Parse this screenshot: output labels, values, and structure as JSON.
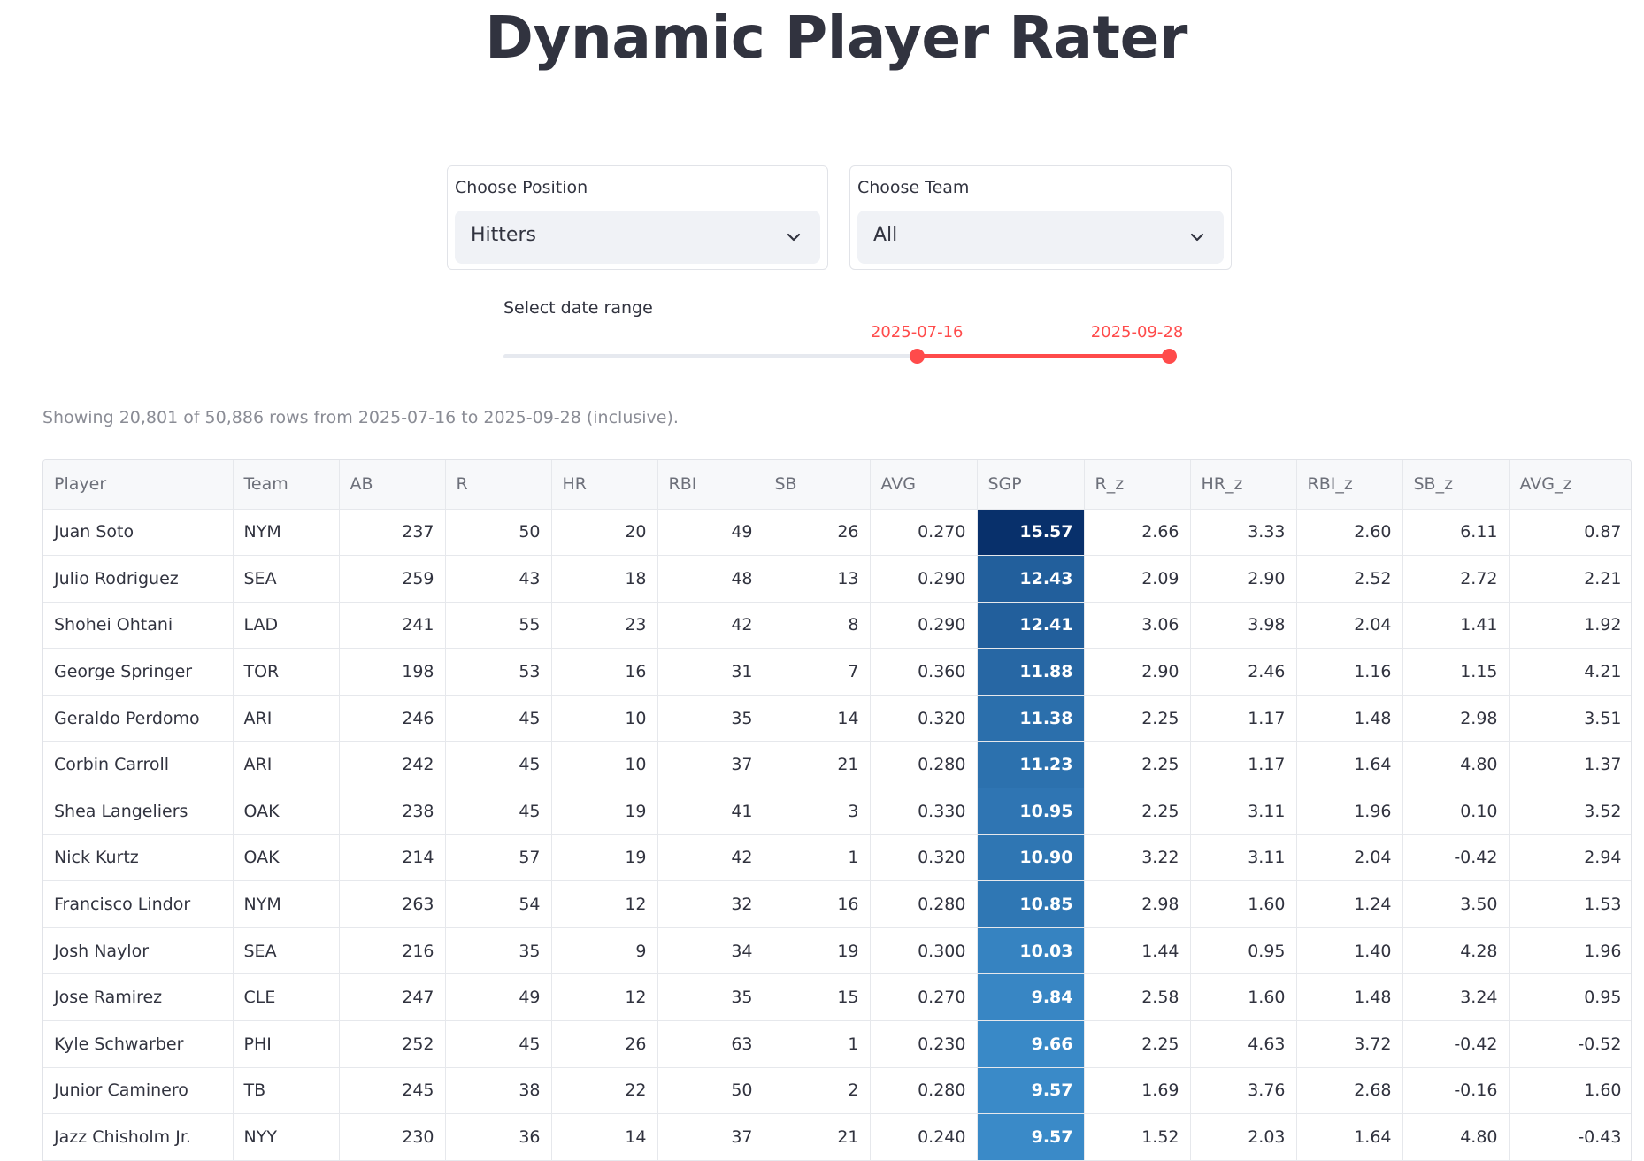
{
  "page": {
    "title": "Dynamic Player Rater"
  },
  "filters": {
    "position": {
      "label": "Choose Position",
      "value": "Hitters"
    },
    "team": {
      "label": "Choose Team",
      "value": "All"
    }
  },
  "date_range": {
    "label": "Select date range",
    "start": "2025-07-16",
    "end": "2025-09-28",
    "start_fraction": 0.618,
    "end_fraction": 1.0,
    "accent_color": "#ff4b4b"
  },
  "caption": "Showing 20,801 of 50,886 rows from 2025-07-16 to 2025-09-28 (inclusive).",
  "table": {
    "columns": [
      "Player",
      "Team",
      "AB",
      "R",
      "HR",
      "RBI",
      "SB",
      "AVG",
      "SGP",
      "R_z",
      "HR_z",
      "RBI_z",
      "SB_z",
      "AVG_z"
    ],
    "sgp_color_scale": {
      "low": "#3a8ac8",
      "high": "#08306b"
    },
    "rows": [
      [
        "Juan Soto",
        "NYM",
        "237",
        "50",
        "20",
        "49",
        "26",
        "0.270",
        "15.57",
        "2.66",
        "3.33",
        "2.60",
        "6.11",
        "0.87"
      ],
      [
        "Julio Rodriguez",
        "SEA",
        "259",
        "43",
        "18",
        "48",
        "13",
        "0.290",
        "12.43",
        "2.09",
        "2.90",
        "2.52",
        "2.72",
        "2.21"
      ],
      [
        "Shohei Ohtani",
        "LAD",
        "241",
        "55",
        "23",
        "42",
        "8",
        "0.290",
        "12.41",
        "3.06",
        "3.98",
        "2.04",
        "1.41",
        "1.92"
      ],
      [
        "George Springer",
        "TOR",
        "198",
        "53",
        "16",
        "31",
        "7",
        "0.360",
        "11.88",
        "2.90",
        "2.46",
        "1.16",
        "1.15",
        "4.21"
      ],
      [
        "Geraldo Perdomo",
        "ARI",
        "246",
        "45",
        "10",
        "35",
        "14",
        "0.320",
        "11.38",
        "2.25",
        "1.17",
        "1.48",
        "2.98",
        "3.51"
      ],
      [
        "Corbin Carroll",
        "ARI",
        "242",
        "45",
        "10",
        "37",
        "21",
        "0.280",
        "11.23",
        "2.25",
        "1.17",
        "1.64",
        "4.80",
        "1.37"
      ],
      [
        "Shea Langeliers",
        "OAK",
        "238",
        "45",
        "19",
        "41",
        "3",
        "0.330",
        "10.95",
        "2.25",
        "3.11",
        "1.96",
        "0.10",
        "3.52"
      ],
      [
        "Nick Kurtz",
        "OAK",
        "214",
        "57",
        "19",
        "42",
        "1",
        "0.320",
        "10.90",
        "3.22",
        "3.11",
        "2.04",
        "-0.42",
        "2.94"
      ],
      [
        "Francisco Lindor",
        "NYM",
        "263",
        "54",
        "12",
        "32",
        "16",
        "0.280",
        "10.85",
        "2.98",
        "1.60",
        "1.24",
        "3.50",
        "1.53"
      ],
      [
        "Josh Naylor",
        "SEA",
        "216",
        "35",
        "9",
        "34",
        "19",
        "0.300",
        "10.03",
        "1.44",
        "0.95",
        "1.40",
        "4.28",
        "1.96"
      ],
      [
        "Jose Ramirez",
        "CLE",
        "247",
        "49",
        "12",
        "35",
        "15",
        "0.270",
        "9.84",
        "2.58",
        "1.60",
        "1.48",
        "3.24",
        "0.95"
      ],
      [
        "Kyle Schwarber",
        "PHI",
        "252",
        "45",
        "26",
        "63",
        "1",
        "0.230",
        "9.66",
        "2.25",
        "4.63",
        "3.72",
        "-0.42",
        "-0.52"
      ],
      [
        "Junior Caminero",
        "TB",
        "245",
        "38",
        "22",
        "50",
        "2",
        "0.280",
        "9.57",
        "1.69",
        "3.76",
        "2.68",
        "-0.16",
        "1.60"
      ],
      [
        "Jazz Chisholm Jr.",
        "NYY",
        "230",
        "36",
        "14",
        "37",
        "21",
        "0.240",
        "9.57",
        "1.52",
        "2.03",
        "1.64",
        "4.80",
        "-0.43"
      ],
      [
        "",
        "",
        "",
        "",
        "",
        "",
        "",
        "",
        "",
        "",
        "",
        "",
        "",
        ""
      ]
    ]
  }
}
